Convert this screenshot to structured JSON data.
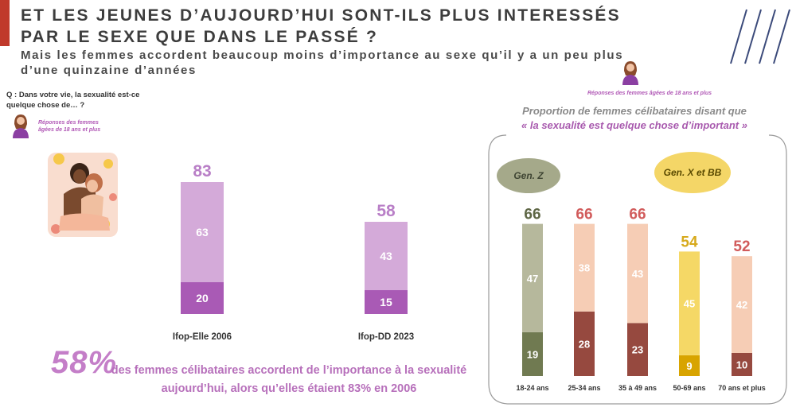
{
  "header": {
    "title": "ET LES JEUNES D’AUJOURD’HUI SONT-ILS PLUS INTERESSÉS PAR LE SEXE QUE DANS LE PASSÉ ?",
    "subtitle": "Mais les femmes accordent beaucoup moins d’importance au sexe qu’il y a un peu plus d’une quinzaine d’années"
  },
  "question": "Q : Dans votre vie, la sexualité est-ce quelque chose de… ?",
  "respondents_left": "Réponses des femmes âgées de 18 ans et plus",
  "respondents_right": "Réponses des femmes âgées de 18 ans et plus",
  "panel": {
    "title": "Proportion de femmes célibataires disant que",
    "quote": "« la sexualité est quelque chose d’important »",
    "bubble_genz": "Gen. Z",
    "bubble_genx": "Gen. X et BB"
  },
  "footer": {
    "big_pct": "58%",
    "text": "des femmes célibataires accordent de l’importance à la sexualité aujourd’hui, alors qu’elles étaient 83% en 2006"
  },
  "colors": {
    "accent": "#c0392b",
    "purple_light": "#d4aad9",
    "purple_dark": "#a95ab5",
    "purple_total": "#b97fc7",
    "olive_light": "#b6b89c",
    "olive_dark": "#707a51",
    "olive_total": "#5e6645",
    "peach_light": "#f6cdb5",
    "brown_dark": "#96493f",
    "red_total": "#d15b5b",
    "yellow_light": "#f5d866",
    "yellow_dark": "#d8a400",
    "yellow_total": "#d7aa1d"
  },
  "chart_data": [
    {
      "type": "bar",
      "categories": [
        "Ifop-Elle 2006",
        "Ifop-DD 2023"
      ],
      "series": [
        {
          "values": [
            20,
            15
          ]
        },
        {
          "values": [
            63,
            43
          ]
        }
      ],
      "totals": [
        83,
        58
      ],
      "stacked": true
    },
    {
      "type": "bar",
      "categories": [
        "18-24 ans",
        "25-34 ans",
        "35 à 49 ans",
        "50-69 ans",
        "70 ans et plus"
      ],
      "series": [
        {
          "values": [
            19,
            28,
            23,
            9,
            10
          ]
        },
        {
          "values": [
            47,
            38,
            43,
            45,
            42
          ]
        }
      ],
      "totals": [
        66,
        66,
        66,
        54,
        52
      ],
      "stacked": true
    }
  ]
}
